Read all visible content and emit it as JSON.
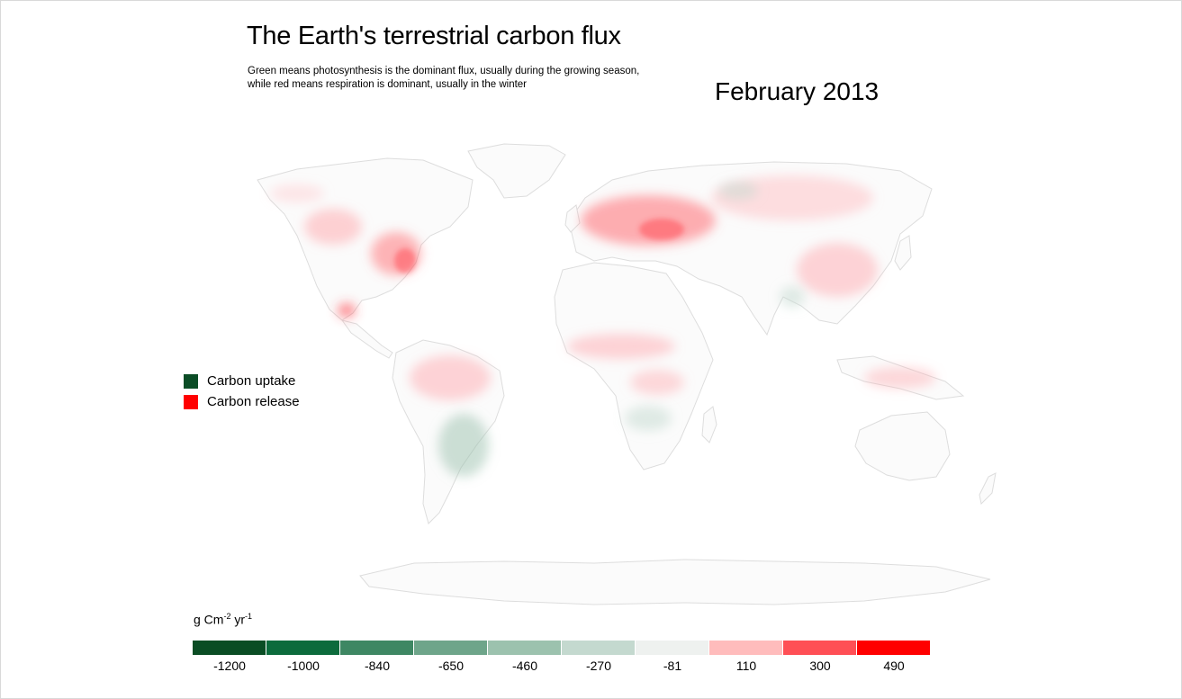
{
  "header": {
    "title": "The Earth's terrestrial carbon flux",
    "subtitle_line1": "Green means photosynthesis is the dominant flux, usually during the growing season,",
    "subtitle_line2": "while red means respiration is dominant, usually in the winter",
    "date": "February 2013"
  },
  "legend": {
    "items": [
      {
        "label": "Carbon uptake",
        "color": "#0b4d26"
      },
      {
        "label": "Carbon release",
        "color": "#ff0000"
      }
    ]
  },
  "colorbar": {
    "unit_base": "g Cm",
    "unit_exp1": "-2",
    "unit_mid": " yr",
    "unit_exp2": "-1",
    "bins": [
      {
        "label": "-1200",
        "color": "#0a4d24"
      },
      {
        "label": "-1000",
        "color": "#0c6b3c"
      },
      {
        "label": "-840",
        "color": "#3e8763"
      },
      {
        "label": "-650",
        "color": "#6ea58a"
      },
      {
        "label": "-460",
        "color": "#9cc2ae"
      },
      {
        "label": "-270",
        "color": "#c4d9cf"
      },
      {
        "label": "-81",
        "color": "#eef1ef"
      },
      {
        "label": "110",
        "color": "#ffbcbc"
      },
      {
        "label": "300",
        "color": "#ff4f55"
      },
      {
        "label": "490",
        "color": "#ff0000"
      }
    ]
  }
}
